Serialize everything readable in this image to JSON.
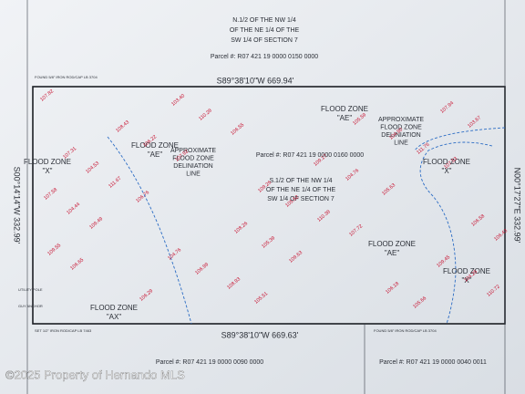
{
  "north_parcel": {
    "description": [
      "N.1/2 OF THE NW 1/4",
      "OF THE NE 1/4 OF THE",
      "SW 1/4 OF SECTION 7"
    ],
    "parcel": "Parcel #: R07 421 19 0000 0150 0000"
  },
  "subject_parcel": {
    "description": [
      "S.1/2 OF THE NW 1/4",
      "OF THE NE 1/4 OF THE",
      "SW 1/4 OF SECTION 7"
    ],
    "parcel": "Parcel #: R07 421 19 0000 0160 0000"
  },
  "south_parcels": [
    "Parcel #: R07 421 19 0000 0090 0000",
    "Parcel #: R07 421 19 0000 0040 0011"
  ],
  "bearings": {
    "north": "S89°38'10\"W   669.94'",
    "south": "S89°38'10\"W   669.63'",
    "west": "S00°14'14\"W   332.99'",
    "east": "N00°17'27\"E   332.99'"
  },
  "flood_zones": [
    [
      "FLOOD ZONE",
      "\"X\""
    ],
    [
      "FLOOD ZONE",
      "\"AE\""
    ],
    [
      "FLOOD ZONE",
      "\"AE\""
    ],
    [
      "FLOOD ZONE",
      "\"X\""
    ],
    [
      "FLOOD ZONE",
      "\"AE\""
    ],
    [
      "FLOOD ZONE",
      "\"X\""
    ],
    [
      "FLOOD ZONE",
      "\"AX\""
    ]
  ],
  "delineation_notes": [
    [
      "APPROXIMATE",
      "FLOOD ZONE",
      "DELINIATION",
      "LINE"
    ],
    [
      "APPROXIMATE",
      "FLOOD ZONE",
      "DELINIATION",
      "LINE"
    ]
  ],
  "corner_notes": [
    "FOUND 5/8\" IRON ROD/CAP LB 3704",
    "UTILITY POLE",
    "GUY ANCHOR",
    "SET 1/2\" IRON ROD/CAP LB 7463",
    "FOUND 5/8\" IRON ROD/CAP LB 3704"
  ],
  "elevations": [
    "107.82",
    "106.55",
    "107.53",
    "106.76",
    "107.72",
    "106.65",
    "105.51",
    "103.67",
    "107.92",
    "105.63",
    "109.49",
    "109.63",
    "110.72",
    "110.28",
    "111.76",
    "111.67",
    "110.38",
    "109.55",
    "108.93",
    "107.94",
    "106.22",
    "104.76",
    "104.44",
    "105.39",
    "104.25",
    "103.40",
    "104.90",
    "104.53",
    "105.62",
    "106.43",
    "106.99",
    "105.66",
    "108.43",
    "109.17",
    "107.58",
    "108.26",
    "109.45",
    "106.29",
    "105.59",
    "107.31",
    "109.26",
    "106.58",
    "104.76",
    "106.18"
  ],
  "watermark": "©2025 Property of Hernando MLS"
}
